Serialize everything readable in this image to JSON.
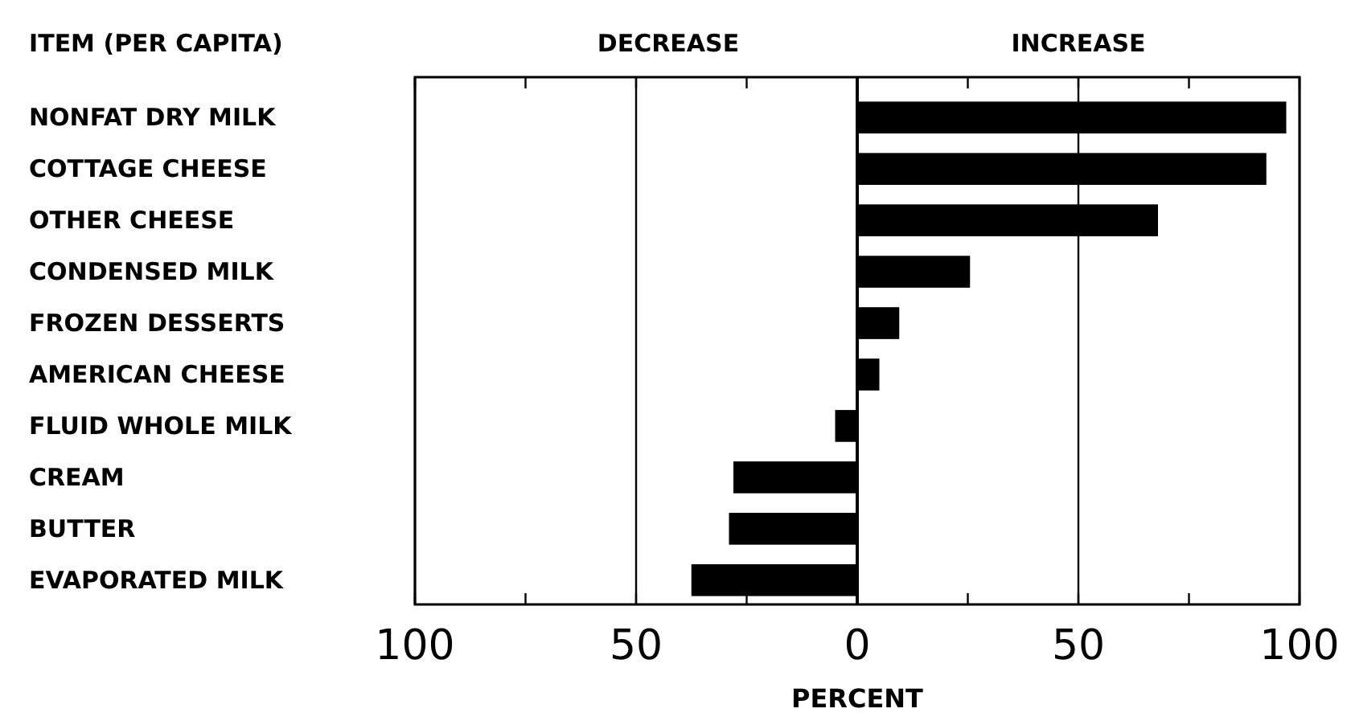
{
  "chart_data": {
    "type": "bar",
    "orientation": "horizontal",
    "xlabel": "PERCENT",
    "annotations": [
      "ITEM (PER CAPITA)",
      "DECREASE",
      "INCREASE"
    ],
    "categories": [
      "NONFAT DRY MILK",
      "COTTAGE CHEESE",
      "OTHER CHEESE",
      "CONDENSED MILK",
      "FROZEN DESSERTS",
      "AMERICAN CHEESE",
      "FLUID WHOLE MILK",
      "CREAM",
      "BUTTER",
      "EVAPORATED MILK"
    ],
    "values": [
      97,
      92.5,
      68,
      25.5,
      9.5,
      5,
      -5,
      -28,
      -29,
      -37.5
    ],
    "color": "#000000",
    "xlim": [
      -100,
      100
    ],
    "xticks": [
      {
        "value": -100,
        "label": "100"
      },
      {
        "value": -75,
        "label": null
      },
      {
        "value": -50,
        "label": "50"
      },
      {
        "value": -25,
        "label": null
      },
      0,
      {
        "value": 25,
        "label": null
      },
      50,
      {
        "value": 75,
        "label": null
      },
      100
    ],
    "grid": "x"
  }
}
